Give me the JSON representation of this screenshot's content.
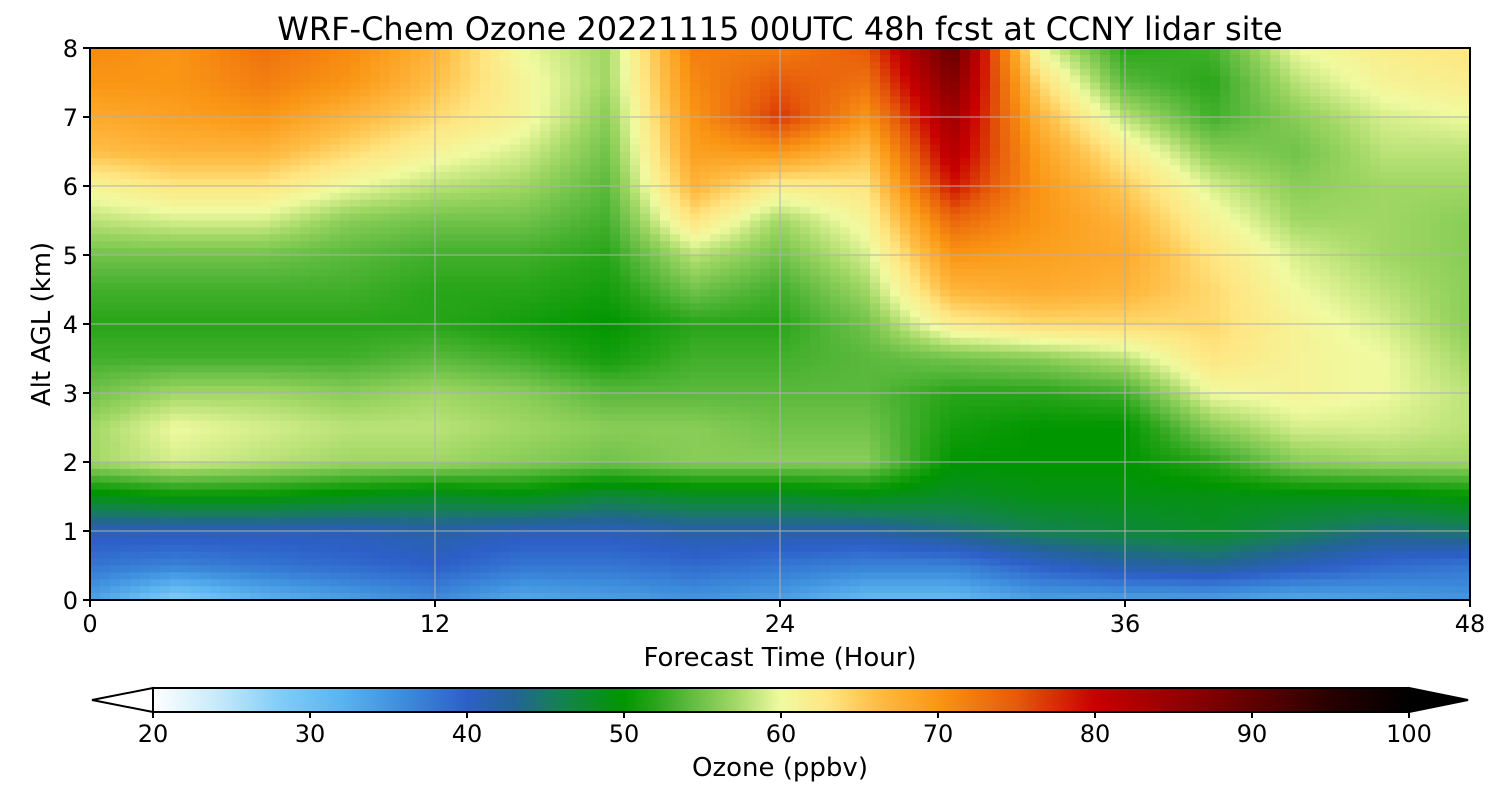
{
  "chart_data": {
    "type": "heatmap",
    "title": "WRF-Chem Ozone  20221115 00UTC 48h fcst at CCNY lidar site",
    "xlabel": "Forecast Time (Hour)",
    "ylabel": "Alt AGL (km)",
    "xlim": [
      0,
      48
    ],
    "ylim": [
      0,
      8
    ],
    "x_ticks": [
      "0",
      "12",
      "24",
      "36",
      "48"
    ],
    "y_ticks": [
      "0",
      "1",
      "2",
      "3",
      "4",
      "5",
      "6",
      "7",
      "8"
    ],
    "grid": true,
    "colorbar": {
      "label": "Ozone  (ppbv)",
      "range": [
        20,
        100
      ],
      "ticks": [
        "20",
        "30",
        "40",
        "50",
        "60",
        "70",
        "80",
        "90",
        "100"
      ],
      "extend": "both"
    },
    "z_altitudes_km": [
      0.0,
      0.5,
      1.0,
      1.5,
      2.0,
      2.5,
      3.0,
      3.5,
      4.0,
      4.5,
      5.0,
      5.5,
      6.0,
      6.5,
      7.0,
      7.5,
      8.0
    ],
    "columns": [
      {
        "x": 0,
        "values": [
          34,
          38,
          41,
          49,
          57,
          57,
          55,
          53,
          52,
          53,
          55,
          58,
          61,
          66,
          68,
          70,
          71
        ]
      },
      {
        "x": 3,
        "values": [
          28,
          37,
          41,
          50,
          59,
          60,
          57,
          53,
          52,
          53,
          55,
          59,
          63,
          67,
          69,
          70,
          70
        ]
      },
      {
        "x": 6,
        "values": [
          32,
          38,
          41,
          50,
          58,
          59,
          57,
          53,
          52,
          53,
          55,
          59,
          63,
          67,
          70,
          72,
          73
        ]
      },
      {
        "x": 9,
        "values": [
          34,
          39,
          41,
          49,
          57,
          58,
          56,
          53,
          52,
          53,
          54,
          56,
          60,
          64,
          67,
          70,
          71
        ]
      },
      {
        "x": 12,
        "values": [
          36,
          40,
          42,
          48,
          57,
          58,
          57,
          54,
          52,
          52,
          53,
          55,
          58,
          61,
          64,
          66,
          67
        ]
      },
      {
        "x": 15,
        "values": [
          33,
          38,
          41,
          49,
          56,
          57,
          56,
          53,
          51,
          52,
          53,
          55,
          57,
          59,
          61,
          61,
          60
        ]
      },
      {
        "x": 18,
        "values": [
          34,
          38,
          41,
          47,
          55,
          56,
          54,
          51,
          50,
          51,
          52,
          53,
          54,
          55,
          56,
          57,
          57
        ]
      },
      {
        "x": 21,
        "values": [
          35,
          39,
          42,
          48,
          56,
          56,
          54,
          53,
          52,
          55,
          58,
          63,
          67,
          69,
          70,
          71,
          72
        ]
      },
      {
        "x": 24,
        "values": [
          34,
          38,
          42,
          48,
          56,
          55,
          54,
          53,
          52,
          53,
          55,
          57,
          62,
          70,
          77,
          75,
          72
        ]
      },
      {
        "x": 27,
        "values": [
          31,
          37,
          42,
          49,
          56,
          55,
          54,
          54,
          55,
          57,
          59,
          61,
          63,
          66,
          70,
          73,
          75
        ]
      },
      {
        "x": 30,
        "values": [
          31,
          37,
          44,
          48,
          50,
          51,
          52,
          55,
          62,
          67,
          70,
          74,
          79,
          82,
          84,
          87,
          90
        ]
      },
      {
        "x": 33,
        "values": [
          34,
          40,
          46,
          49,
          50,
          50,
          52,
          56,
          64,
          68,
          69,
          70,
          70,
          69,
          67,
          64,
          60
        ]
      },
      {
        "x": 36,
        "values": [
          34,
          42,
          47,
          49,
          50,
          50,
          53,
          58,
          64,
          67,
          68,
          67,
          65,
          62,
          58,
          54,
          52
        ]
      },
      {
        "x": 39,
        "values": [
          34,
          43,
          48,
          49,
          52,
          56,
          60,
          63,
          64,
          64,
          63,
          61,
          59,
          56,
          53,
          52,
          53
        ]
      },
      {
        "x": 42,
        "values": [
          33,
          41,
          46,
          49,
          56,
          59,
          61,
          61,
          61,
          60,
          59,
          57,
          56,
          55,
          56,
          58,
          60
        ]
      },
      {
        "x": 45,
        "values": [
          34,
          39,
          44,
          49,
          57,
          59,
          60,
          60,
          59,
          58,
          57,
          57,
          57,
          58,
          59,
          61,
          62
        ]
      },
      {
        "x": 48,
        "values": [
          35,
          38,
          45,
          50,
          57,
          58,
          58,
          57,
          56,
          56,
          56,
          56,
          57,
          58,
          60,
          62,
          63
        ]
      }
    ]
  }
}
